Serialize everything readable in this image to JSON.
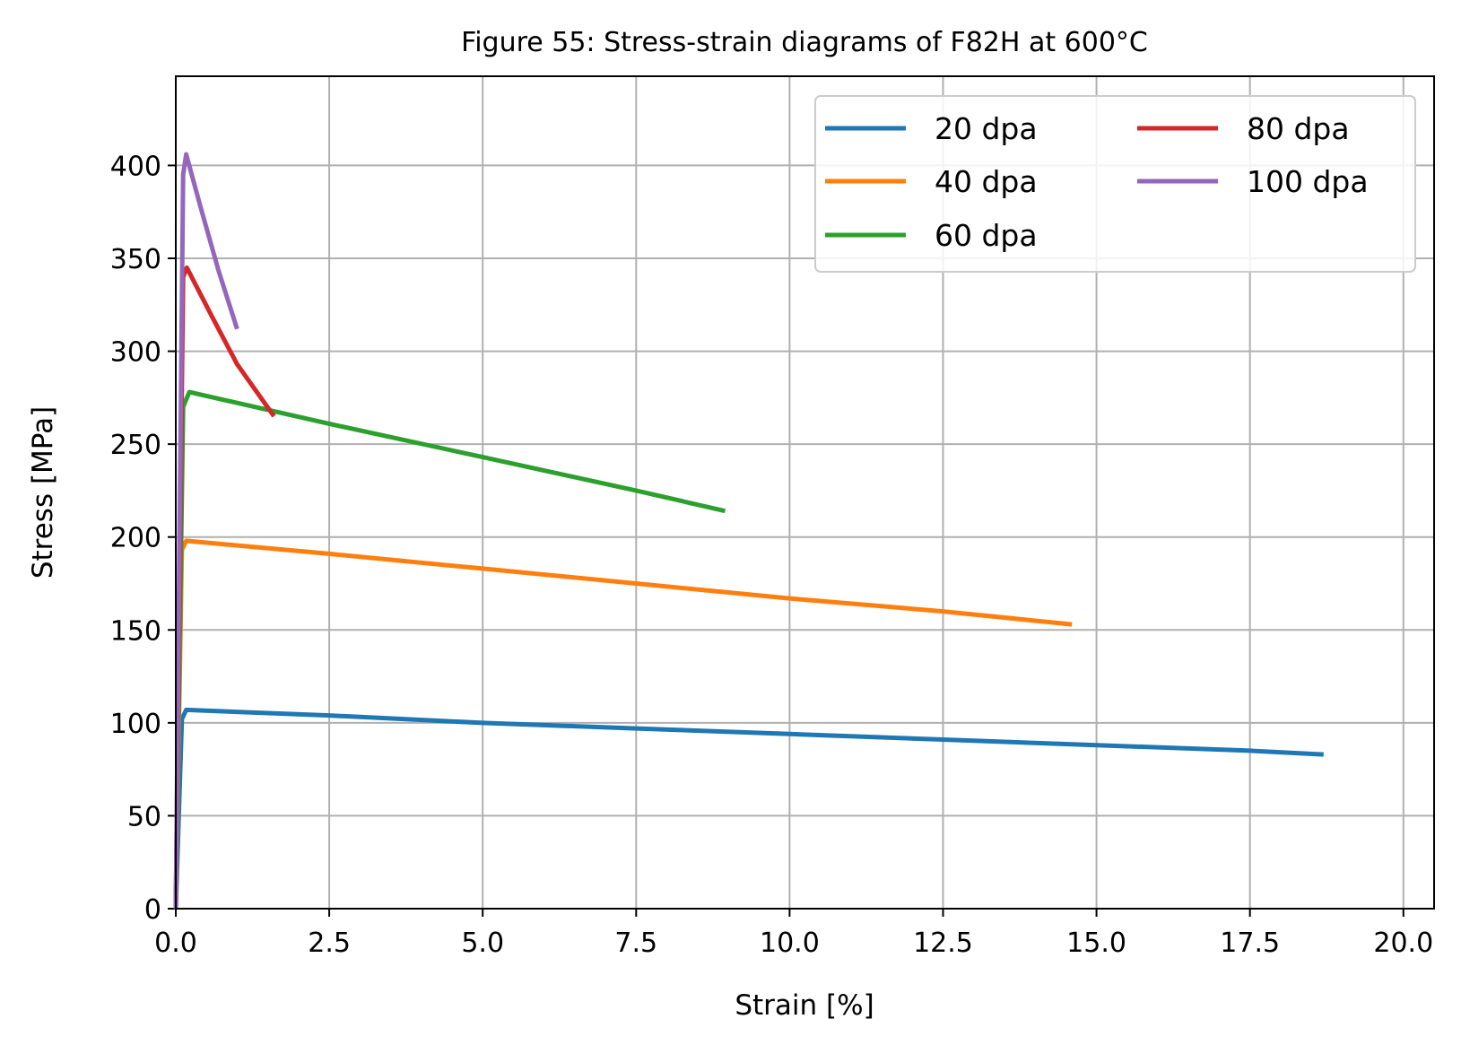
{
  "chart_data": {
    "type": "line",
    "title": "Figure 55: Stress-strain diagrams of F82H at 600°C",
    "xlabel": "Strain [%]",
    "ylabel": "Stress [MPa]",
    "xlim": [
      0,
      20.5
    ],
    "ylim": [
      0,
      448
    ],
    "xticks": [
      0.0,
      2.5,
      5.0,
      7.5,
      10.0,
      12.5,
      15.0,
      17.5,
      20.0
    ],
    "xtick_labels": [
      "0.0",
      "2.5",
      "5.0",
      "7.5",
      "10.0",
      "12.5",
      "15.0",
      "17.5",
      "20.0"
    ],
    "yticks": [
      0,
      50,
      100,
      150,
      200,
      250,
      300,
      350,
      400
    ],
    "ytick_labels": [
      "0",
      "50",
      "100",
      "150",
      "200",
      "250",
      "300",
      "350",
      "400"
    ],
    "grid": true,
    "legend": {
      "position": "top-right",
      "columns": 2
    },
    "series": [
      {
        "name": "20 dpa",
        "color": "#1f77b4",
        "x": [
          0,
          0.1,
          0.17,
          2.5,
          5.0,
          7.5,
          10.0,
          12.5,
          15.0,
          17.5,
          18.7
        ],
        "y": [
          0,
          102,
          107,
          104,
          100,
          97,
          94,
          91,
          88,
          85,
          83
        ]
      },
      {
        "name": "40 dpa",
        "color": "#ff7f0e",
        "x": [
          0,
          0.1,
          0.17,
          2.5,
          5.0,
          7.5,
          10.0,
          12.5,
          14.6
        ],
        "y": [
          0,
          193,
          198,
          191,
          183,
          175,
          167,
          160,
          153
        ]
      },
      {
        "name": "60 dpa",
        "color": "#2ca02c",
        "x": [
          0,
          0.12,
          0.22,
          2.5,
          5.0,
          7.5,
          8.95
        ],
        "y": [
          0,
          270,
          278,
          261,
          243,
          225,
          214
        ]
      },
      {
        "name": "80 dpa",
        "color": "#d62728",
        "x": [
          0,
          0.12,
          0.18,
          0.6,
          1.0,
          1.6
        ],
        "y": [
          0,
          340,
          345,
          318,
          293,
          265
        ]
      },
      {
        "name": "100 dpa",
        "color": "#9467bd",
        "x": [
          0,
          0.12,
          0.17,
          0.4,
          0.7,
          1.0
        ],
        "y": [
          0,
          395,
          406,
          378,
          343,
          312
        ]
      }
    ]
  }
}
